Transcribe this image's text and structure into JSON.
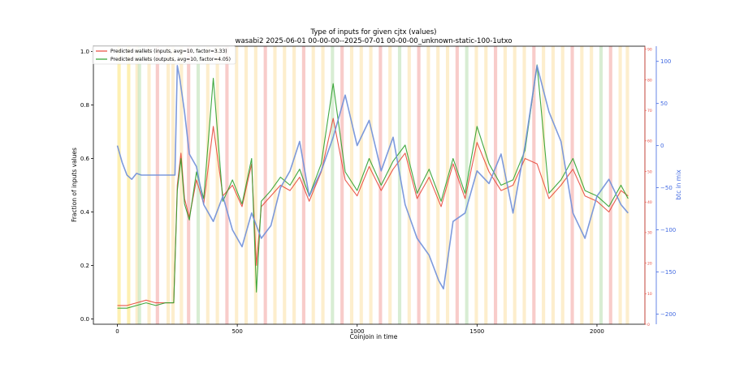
{
  "chart_data": {
    "type": "line",
    "title": "Type of inputs for given cjtx (values)",
    "subtitle": "wasabi2 2025-06-01 00-00-00--2025-07-01 00-00-00_unknown-static-100-1utxo",
    "xlabel": "Coinjoin in time",
    "ylabel": "Fraction of inputs values",
    "y2label": "btc in mix",
    "xlim": [
      -100,
      2200
    ],
    "ylim": [
      -0.02,
      1.02
    ],
    "y2lim": [
      -212,
      118
    ],
    "y3lim": [
      0,
      91
    ],
    "x_ticks": [
      "0",
      "500",
      "1000",
      "1500",
      "2000"
    ],
    "y_ticks": [
      "0.0",
      "0.2",
      "0.4",
      "0.6",
      "0.8",
      "1.0"
    ],
    "y2_ticks": [
      "100",
      "50",
      "0",
      "−50",
      "−100",
      "−150",
      "−200"
    ],
    "y3_ticks": [
      "0",
      "10",
      "20",
      "30",
      "40",
      "50",
      "60",
      "70",
      "80",
      "90"
    ],
    "legend_position": "top-left",
    "grid": false,
    "series": [
      {
        "name": "Predicted wallets (inputs, avg=10, factor=3.33)",
        "color": "#e8483b",
        "x": [
          0,
          40,
          80,
          120,
          160,
          200,
          235,
          250,
          265,
          280,
          300,
          330,
          360,
          400,
          440,
          480,
          520,
          560,
          580,
          600,
          640,
          680,
          720,
          760,
          800,
          850,
          900,
          950,
          1000,
          1050,
          1100,
          1150,
          1200,
          1250,
          1300,
          1350,
          1400,
          1450,
          1500,
          1550,
          1600,
          1650,
          1700,
          1750,
          1800,
          1850,
          1900,
          1950,
          2000,
          2050,
          2100,
          2130
        ],
        "values": [
          0.05,
          0.05,
          0.06,
          0.07,
          0.06,
          0.06,
          0.06,
          0.5,
          0.62,
          0.45,
          0.38,
          0.52,
          0.43,
          0.72,
          0.46,
          0.5,
          0.42,
          0.58,
          0.2,
          0.42,
          0.46,
          0.5,
          0.48,
          0.53,
          0.44,
          0.55,
          0.75,
          0.52,
          0.46,
          0.57,
          0.48,
          0.56,
          0.62,
          0.45,
          0.53,
          0.42,
          0.58,
          0.45,
          0.66,
          0.55,
          0.48,
          0.5,
          0.6,
          0.58,
          0.45,
          0.5,
          0.56,
          0.46,
          0.44,
          0.4,
          0.48,
          0.46
        ]
      },
      {
        "name": "Predicted wallets (outputs, avg=10, factor=4.05)",
        "color": "#2ca02c",
        "x": [
          0,
          40,
          80,
          120,
          160,
          200,
          235,
          250,
          265,
          280,
          300,
          330,
          360,
          400,
          440,
          480,
          520,
          560,
          580,
          600,
          640,
          680,
          720,
          760,
          800,
          850,
          900,
          950,
          1000,
          1050,
          1100,
          1150,
          1200,
          1250,
          1300,
          1350,
          1400,
          1450,
          1500,
          1550,
          1600,
          1650,
          1700,
          1750,
          1800,
          1850,
          1900,
          1950,
          2000,
          2050,
          2100,
          2130
        ],
        "values": [
          0.04,
          0.04,
          0.05,
          0.06,
          0.05,
          0.06,
          0.06,
          0.48,
          0.6,
          0.43,
          0.37,
          0.55,
          0.45,
          0.9,
          0.44,
          0.52,
          0.43,
          0.6,
          0.1,
          0.44,
          0.48,
          0.53,
          0.5,
          0.56,
          0.46,
          0.58,
          0.88,
          0.55,
          0.48,
          0.6,
          0.5,
          0.59,
          0.65,
          0.47,
          0.56,
          0.44,
          0.6,
          0.47,
          0.72,
          0.58,
          0.5,
          0.52,
          0.63,
          0.95,
          0.47,
          0.52,
          0.6,
          0.48,
          0.46,
          0.42,
          0.5,
          0.45
        ]
      },
      {
        "name": "btc in mix",
        "axis": "y2",
        "color": "#6f8fd9",
        "x": [
          0,
          20,
          40,
          60,
          80,
          100,
          150,
          200,
          240,
          250,
          260,
          280,
          300,
          330,
          360,
          400,
          440,
          480,
          520,
          560,
          600,
          640,
          680,
          720,
          760,
          800,
          850,
          900,
          950,
          1000,
          1050,
          1100,
          1150,
          1200,
          1250,
          1300,
          1340,
          1360,
          1380,
          1400,
          1450,
          1500,
          1550,
          1600,
          1650,
          1700,
          1750,
          1800,
          1850,
          1900,
          1950,
          2000,
          2050,
          2100,
          2130
        ],
        "values": [
          0,
          -20,
          -35,
          -40,
          -33,
          -35,
          -35,
          -35,
          -35,
          95,
          80,
          40,
          -10,
          -25,
          -70,
          -90,
          -60,
          -100,
          -120,
          -80,
          -110,
          -95,
          -50,
          -30,
          5,
          -60,
          -30,
          10,
          60,
          0,
          30,
          -30,
          10,
          -70,
          -110,
          -130,
          -160,
          -170,
          -130,
          -90,
          -80,
          -30,
          -45,
          -10,
          -80,
          0,
          95,
          40,
          5,
          -80,
          -110,
          -60,
          -40,
          -70,
          -80
        ]
      }
    ],
    "background_bands": {
      "colors": [
        "#fde992",
        "#fce7b8",
        "#f5b7b4",
        "#c7e6c1"
      ],
      "x": [
        0,
        40,
        75,
        85,
        125,
        160,
        205,
        225,
        260,
        290,
        330,
        370,
        410,
        450,
        490,
        530,
        570,
        610,
        650,
        690,
        730,
        770,
        810,
        850,
        890,
        930,
        970,
        1010,
        1050,
        1090,
        1130,
        1170,
        1210,
        1250,
        1290,
        1330,
        1370,
        1410,
        1450,
        1490,
        1530,
        1570,
        1610,
        1650,
        1690,
        1730,
        1770,
        1810,
        1850,
        1890,
        1930,
        1970,
        2010,
        2050,
        2090,
        2120
      ]
    }
  }
}
